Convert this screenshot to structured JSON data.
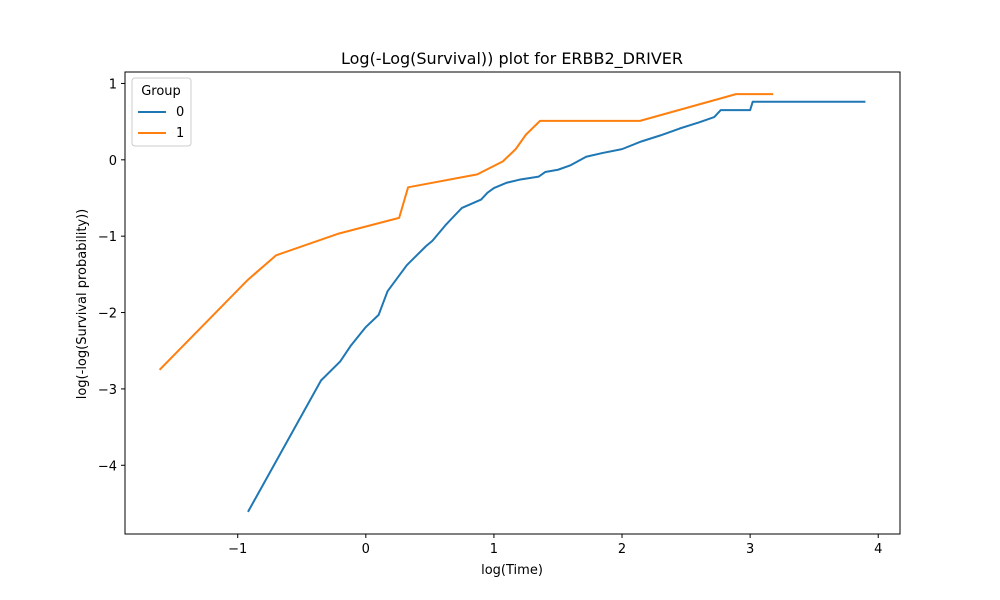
{
  "chart_data": {
    "type": "line",
    "title": "Log(-Log(Survival)) plot for ERBB2_DRIVER",
    "xlabel": "log(Time)",
    "ylabel": "log(-log(Survival probability))",
    "xlim": [
      -1.88,
      4.17
    ],
    "ylim": [
      -4.9,
      1.15
    ],
    "x_ticks": [
      -1,
      0,
      1,
      2,
      3,
      4
    ],
    "y_ticks": [
      -4,
      -3,
      -2,
      -1,
      0,
      1
    ],
    "x_tick_labels": [
      "−1",
      "0",
      "1",
      "2",
      "3",
      "4"
    ],
    "y_tick_labels": [
      "−4",
      "−3",
      "−2",
      "−1",
      "0",
      "1"
    ],
    "grid": false,
    "legend": {
      "title": "Group",
      "position": "top-left"
    },
    "colors": {
      "group_0": "#1f77b4",
      "group_1": "#ff7f0e"
    },
    "series": [
      {
        "name": "0",
        "color": "#1f77b4",
        "points": [
          [
            -0.92,
            -4.61
          ],
          [
            -0.35,
            -2.89
          ],
          [
            -0.2,
            -2.64
          ],
          [
            -0.12,
            -2.44
          ],
          [
            0.0,
            -2.19
          ],
          [
            0.1,
            -2.03
          ],
          [
            0.17,
            -1.72
          ],
          [
            0.32,
            -1.38
          ],
          [
            0.47,
            -1.13
          ],
          [
            0.52,
            -1.06
          ],
          [
            0.62,
            -0.86
          ],
          [
            0.67,
            -0.77
          ],
          [
            0.75,
            -0.63
          ],
          [
            0.9,
            -0.52
          ],
          [
            0.95,
            -0.43
          ],
          [
            1.0,
            -0.37
          ],
          [
            1.1,
            -0.3
          ],
          [
            1.2,
            -0.26
          ],
          [
            1.35,
            -0.22
          ],
          [
            1.4,
            -0.16
          ],
          [
            1.5,
            -0.13
          ],
          [
            1.6,
            -0.07
          ],
          [
            1.72,
            0.04
          ],
          [
            1.85,
            0.09
          ],
          [
            2.0,
            0.14
          ],
          [
            2.15,
            0.24
          ],
          [
            2.3,
            0.32
          ],
          [
            2.45,
            0.41
          ],
          [
            2.6,
            0.49
          ],
          [
            2.72,
            0.56
          ],
          [
            2.77,
            0.65
          ],
          [
            3.0,
            0.65
          ],
          [
            3.02,
            0.76
          ],
          [
            3.9,
            0.76
          ]
        ]
      },
      {
        "name": "1",
        "color": "#ff7f0e",
        "points": [
          [
            -1.61,
            -2.75
          ],
          [
            -0.92,
            -1.57
          ],
          [
            -0.7,
            -1.25
          ],
          [
            -0.22,
            -0.97
          ],
          [
            0.26,
            -0.76
          ],
          [
            0.33,
            -0.36
          ],
          [
            0.87,
            -0.19
          ],
          [
            1.07,
            -0.02
          ],
          [
            1.17,
            0.14
          ],
          [
            1.25,
            0.33
          ],
          [
            1.36,
            0.51
          ],
          [
            2.14,
            0.51
          ],
          [
            2.89,
            0.86
          ],
          [
            3.18,
            0.86
          ]
        ]
      }
    ]
  }
}
